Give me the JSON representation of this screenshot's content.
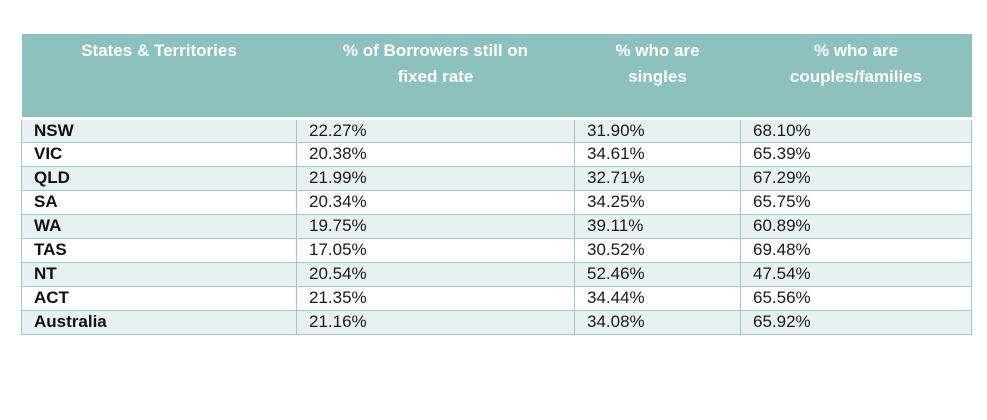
{
  "table": {
    "headers": [
      "States & Territories",
      "% of Borrowers still on\nfixed rate",
      "% who are\nsingles",
      "% who are\ncouples/families"
    ],
    "rows": [
      {
        "state": "NSW",
        "fixed": "22.27%",
        "singles": "31.90%",
        "couples": "68.10%"
      },
      {
        "state": "VIC",
        "fixed": "20.38%",
        "singles": "34.61%",
        "couples": "65.39%"
      },
      {
        "state": "QLD",
        "fixed": "21.99%",
        "singles": "32.71%",
        "couples": "67.29%"
      },
      {
        "state": "SA",
        "fixed": "20.34%",
        "singles": "34.25%",
        "couples": "65.75%"
      },
      {
        "state": "WA",
        "fixed": "19.75%",
        "singles": "39.11%",
        "couples": "60.89%"
      },
      {
        "state": "TAS",
        "fixed": "17.05%",
        "singles": "30.52%",
        "couples": "69.48%"
      },
      {
        "state": "NT",
        "fixed": "20.54%",
        "singles": "52.46%",
        "couples": "47.54%"
      },
      {
        "state": "ACT",
        "fixed": "21.35%",
        "singles": "34.44%",
        "couples": "65.56%"
      },
      {
        "state": "Australia",
        "fixed": "21.16%",
        "singles": "34.08%",
        "couples": "65.92%"
      }
    ],
    "colors": {
      "header_bg": "#8cc1bd",
      "header_text": "#ffffff",
      "row_alt_bg": "#e7f1f1",
      "border": "#9fcbc7"
    }
  }
}
